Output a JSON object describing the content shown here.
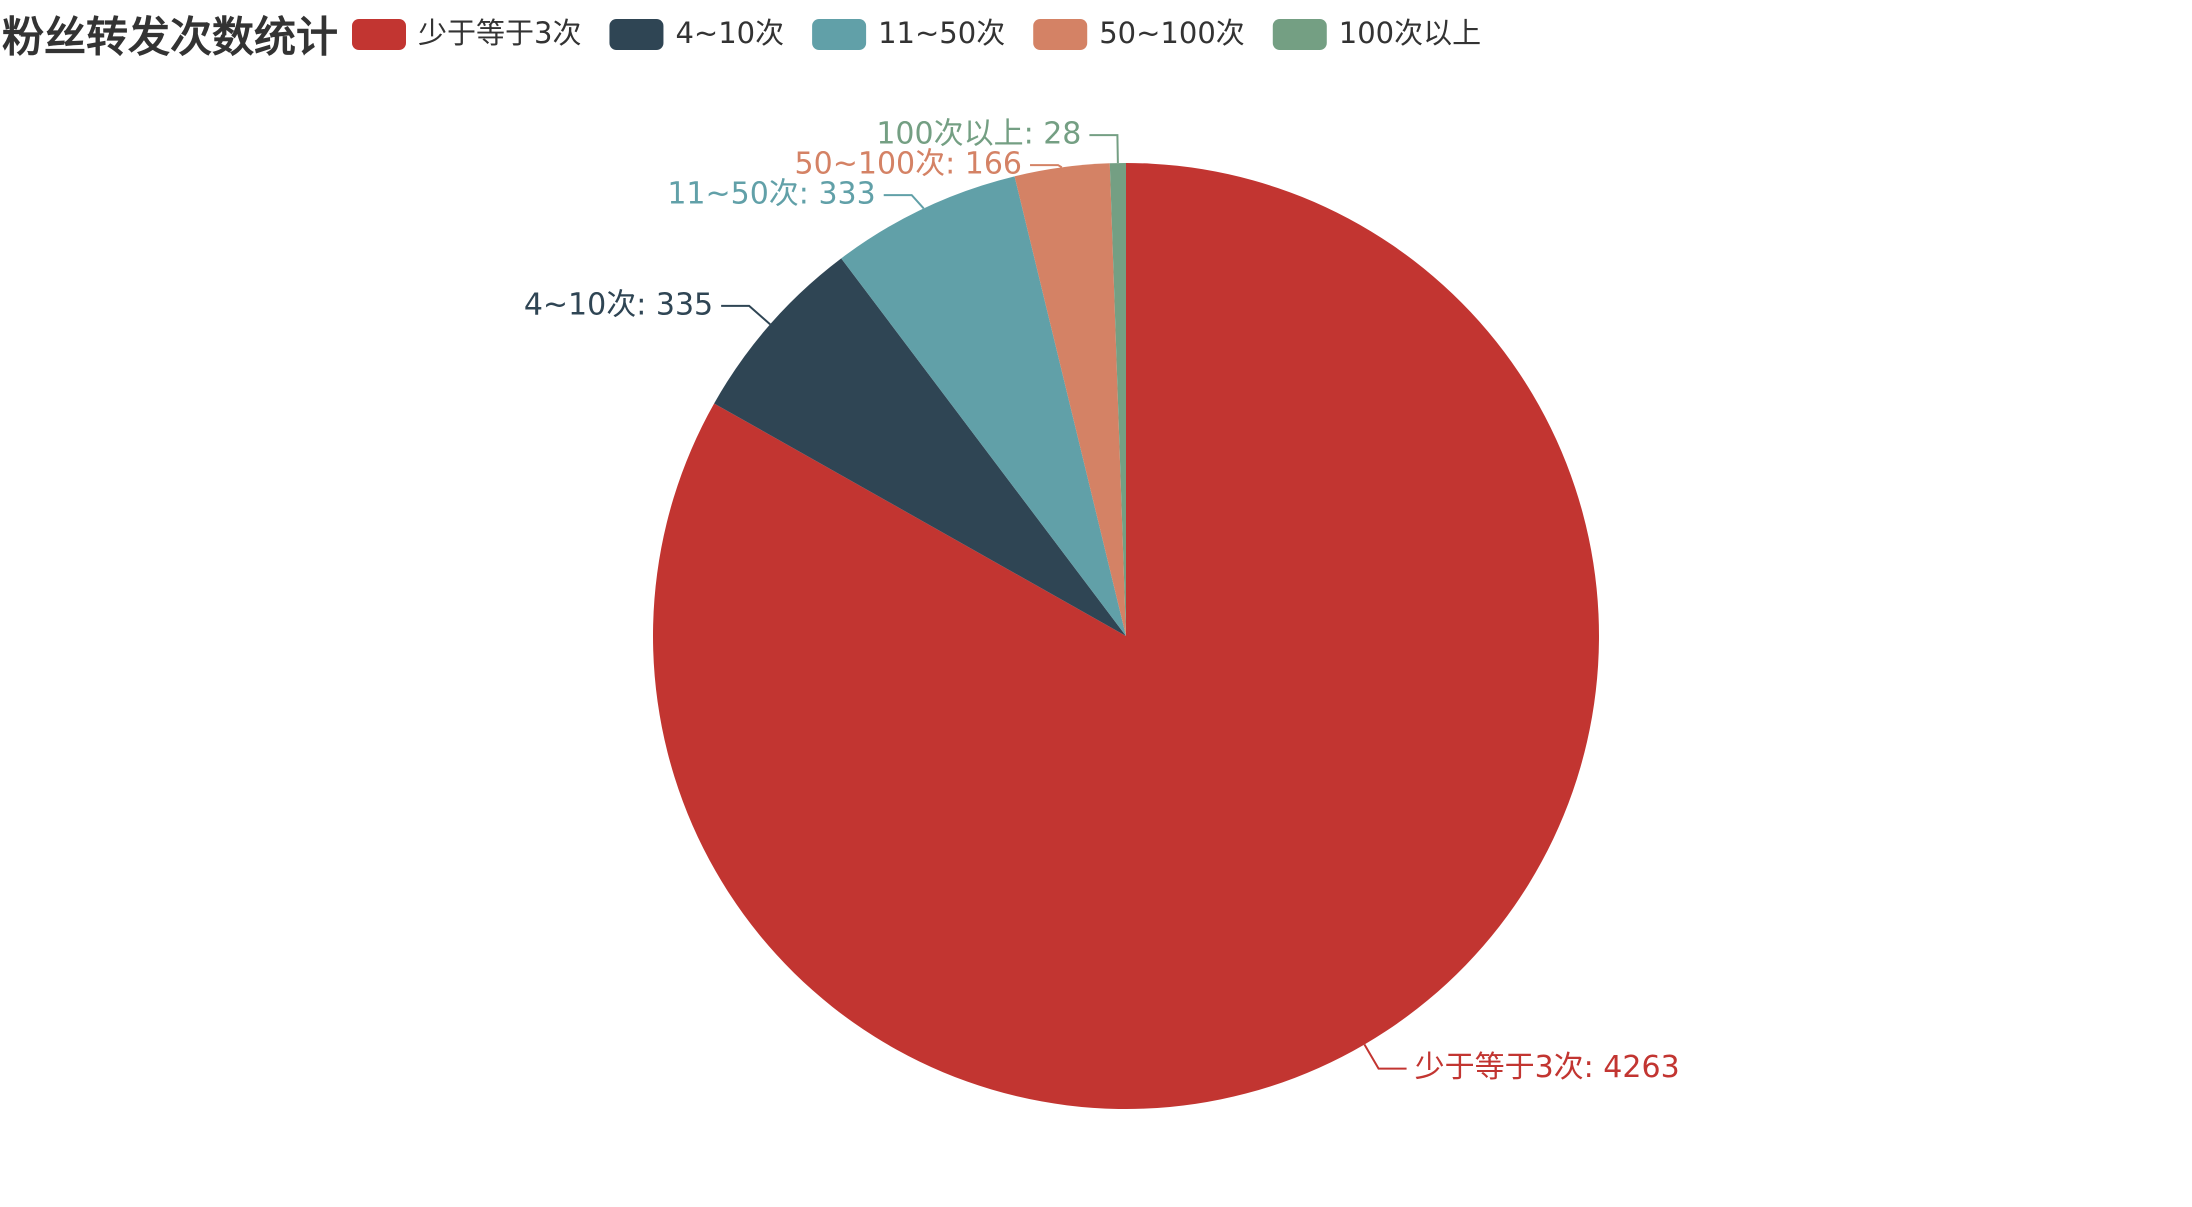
{
  "chart_data": {
    "type": "pie",
    "title": "粉丝转发次数统计",
    "categories": [
      "少于等于3次",
      "4~10次",
      "11~50次",
      "50~100次",
      "100次以上"
    ],
    "values": [
      4263,
      335,
      333,
      166,
      28
    ],
    "value_labels": [
      "少于等于3次: 4263",
      "4~10次: 335",
      "11~50次: 333",
      "50~100次: 166",
      "100次以上: 28"
    ],
    "colors": [
      "#c23531",
      "#2f4554",
      "#61a0a8",
      "#d48265",
      "#749f83"
    ],
    "legend": "top"
  }
}
